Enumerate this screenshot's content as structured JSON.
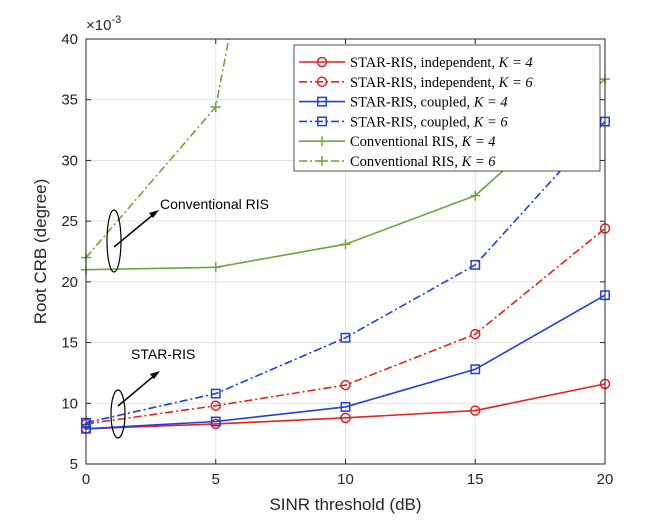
{
  "chart_data": {
    "type": "line",
    "xlabel": "SINR threshold (dB)",
    "ylabel": "Root CRB (degree)",
    "exponent_label": "×10",
    "exponent_power": "-3",
    "xlim": [
      0,
      20
    ],
    "ylim": [
      5,
      40
    ],
    "xticks": [
      "0",
      "5",
      "10",
      "15",
      "20"
    ],
    "yticks": [
      "5",
      "10",
      "15",
      "20",
      "25",
      "30",
      "35",
      "40"
    ],
    "grid": true,
    "legend_position": "top-right",
    "series": [
      {
        "name_main": "STAR-RIS, independent, ",
        "name_math": "K = 4",
        "color": "#e3231c",
        "style": "solid",
        "marker": "circle",
        "x": [
          0,
          5,
          10,
          15,
          20
        ],
        "y": [
          7.9,
          8.3,
          8.8,
          9.4,
          11.6
        ]
      },
      {
        "name_main": "STAR-RIS, independent, ",
        "name_math": "K = 6",
        "color": "#e3231c",
        "style": "dashdot",
        "marker": "circle",
        "x": [
          0,
          5,
          10,
          15,
          20
        ],
        "y": [
          8.3,
          9.8,
          11.5,
          15.7,
          24.4
        ]
      },
      {
        "name_main": "STAR-RIS, coupled, ",
        "name_math": "K = 4",
        "color": "#1f3ee6",
        "style": "solid",
        "marker": "square",
        "x": [
          0,
          5,
          10,
          15,
          20
        ],
        "y": [
          7.9,
          8.5,
          9.7,
          12.8,
          18.9
        ]
      },
      {
        "name_main": "STAR-RIS, coupled, ",
        "name_math": "K = 6",
        "color": "#1f3ee6",
        "style": "dashdot",
        "marker": "square",
        "x": [
          0,
          5,
          10,
          15,
          20
        ],
        "y": [
          8.4,
          10.8,
          15.4,
          21.4,
          33.2
        ]
      },
      {
        "name_main": "Conventional RIS, ",
        "name_math": "K = 4",
        "color": "#6ea63a",
        "style": "solid",
        "marker": "plus",
        "x": [
          0,
          5,
          10,
          15,
          20
        ],
        "y": [
          21.0,
          21.2,
          23.1,
          27.1,
          36.7
        ]
      },
      {
        "name_main": "Conventional RIS, ",
        "name_math": "K = 6",
        "color": "#6ea63a",
        "style": "dashdot",
        "marker": "plus",
        "x": [
          0,
          5,
          5.5
        ],
        "y": [
          22.0,
          34.4,
          40
        ]
      }
    ],
    "annotations": [
      {
        "text": "Conventional RIS"
      },
      {
        "text": "STAR-RIS"
      }
    ]
  }
}
